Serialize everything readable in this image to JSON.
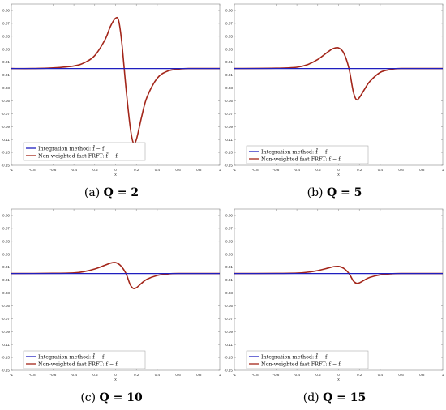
{
  "chart_data": [
    {
      "type": "line",
      "caption_tag": "(a)",
      "caption_text": "Q = 2",
      "xlabel": "x",
      "xlim": [
        -1,
        1
      ],
      "ylim": [
        -0.15,
        0.1
      ],
      "xticks": [
        "-1",
        "-0.8",
        "-0.6",
        "-0.4",
        "-0.2",
        "0",
        "0.2",
        "0.4",
        "0.6",
        "0.8",
        "1"
      ],
      "yticks": [
        "0.09",
        "0.07",
        "0.05",
        "0.03",
        "0.01",
        "-0.01",
        "-0.03",
        "-0.05",
        "-0.07",
        "-0.09",
        "-0.11",
        "-0.13",
        "-0.15"
      ],
      "legend_position": "center-left",
      "series": [
        {
          "name": "Integration method: f̃ − f",
          "color": "#1f1fbf",
          "x": [
            -1,
            -0.6,
            -0.2,
            0,
            0.2,
            0.6,
            1
          ],
          "y": [
            0,
            0,
            0,
            0,
            0,
            0,
            0
          ]
        },
        {
          "name": "Non-weighted fast FRFT: f̃ − f",
          "color": "#a3261a",
          "x": [
            -1,
            -0.8,
            -0.6,
            -0.4,
            -0.3,
            -0.2,
            -0.1,
            -0.05,
            0,
            0.03,
            0.06,
            0.1,
            0.14,
            0.17,
            0.2,
            0.25,
            0.3,
            0.4,
            0.5,
            0.6,
            0.7,
            1
          ],
          "y": [
            0,
            0,
            0.001,
            0.004,
            0.009,
            0.02,
            0.045,
            0.065,
            0.078,
            0.074,
            0.04,
            -0.03,
            -0.09,
            -0.115,
            -0.11,
            -0.075,
            -0.045,
            -0.015,
            -0.004,
            -0.001,
            0,
            0
          ]
        }
      ]
    },
    {
      "type": "line",
      "caption_tag": "(b)",
      "caption_text": "Q = 5",
      "xlabel": "x",
      "xlim": [
        -1,
        1
      ],
      "ylim": [
        -0.15,
        0.1
      ],
      "xticks": [
        "-1",
        "-0.8",
        "-0.6",
        "-0.4",
        "-0.2",
        "0",
        "0.2",
        "0.4",
        "0.6",
        "0.8",
        "1"
      ],
      "yticks": [
        "0.09",
        "0.07",
        "0.05",
        "0.03",
        "0.01",
        "-0.01",
        "-0.03",
        "-0.05",
        "-0.07",
        "-0.09",
        "-0.11",
        "-0.13",
        "-0.15"
      ],
      "legend_position": "bottom-left",
      "series": [
        {
          "name": "Integration method: f̃ − f",
          "color": "#1f1fbf",
          "x": [
            -1,
            -0.6,
            -0.2,
            0,
            0.2,
            0.6,
            1
          ],
          "y": [
            0,
            0,
            0,
            0,
            0,
            0,
            0
          ]
        },
        {
          "name": "Non-weighted fast FRFT: f̃ − f",
          "color": "#a3261a",
          "x": [
            -1,
            -0.6,
            -0.4,
            -0.3,
            -0.2,
            -0.1,
            -0.05,
            0,
            0.05,
            0.1,
            0.14,
            0.17,
            0.2,
            0.25,
            0.3,
            0.4,
            0.5,
            0.6,
            1
          ],
          "y": [
            0,
            0.0005,
            0.002,
            0.006,
            0.014,
            0.026,
            0.031,
            0.032,
            0.024,
            0.0,
            -0.035,
            -0.048,
            -0.045,
            -0.032,
            -0.02,
            -0.006,
            -0.0015,
            0,
            0
          ]
        }
      ]
    },
    {
      "type": "line",
      "caption_tag": "(c)",
      "caption_text": "Q = 10",
      "xlabel": "x",
      "xlim": [
        -1,
        1
      ],
      "ylim": [
        -0.15,
        0.1
      ],
      "xticks": [
        "-1",
        "-0.8",
        "-0.6",
        "-0.4",
        "-0.2",
        "0",
        "0.2",
        "0.4",
        "0.6",
        "0.8",
        "1"
      ],
      "yticks": [
        "0.09",
        "0.07",
        "0.05",
        "0.03",
        "0.01",
        "-0.01",
        "-0.03",
        "-0.05",
        "-0.07",
        "-0.09",
        "-0.11",
        "-0.13",
        "-0.15"
      ],
      "legend_position": "bottom-left",
      "series": [
        {
          "name": "Integration method: f̃ − f",
          "color": "#1f1fbf",
          "x": [
            -1,
            -0.6,
            -0.2,
            0,
            0.2,
            0.6,
            1
          ],
          "y": [
            0,
            0,
            0,
            0,
            0,
            0,
            0
          ]
        },
        {
          "name": "Non-weighted fast FRFT: f̃ − f",
          "color": "#a3261a",
          "x": [
            -1,
            -0.6,
            -0.4,
            -0.3,
            -0.2,
            -0.1,
            -0.05,
            0,
            0.05,
            0.1,
            0.14,
            0.17,
            0.2,
            0.25,
            0.3,
            0.4,
            0.5,
            0.6,
            1
          ],
          "y": [
            0,
            0.0003,
            0.001,
            0.003,
            0.007,
            0.013,
            0.016,
            0.017,
            0.012,
            0.0,
            -0.017,
            -0.023,
            -0.022,
            -0.015,
            -0.009,
            -0.003,
            -0.0007,
            0,
            0
          ]
        }
      ]
    },
    {
      "type": "line",
      "caption_tag": "(d)",
      "caption_text": "Q = 15",
      "xlabel": "x",
      "xlim": [
        -1,
        1
      ],
      "ylim": [
        -0.15,
        0.1
      ],
      "xticks": [
        "-1",
        "-0.8",
        "-0.6",
        "-0.4",
        "-0.2",
        "0",
        "0.2",
        "0.4",
        "0.6",
        "0.8",
        "1"
      ],
      "yticks": [
        "0.09",
        "0.07",
        "0.05",
        "0.03",
        "0.01",
        "-0.01",
        "-0.03",
        "-0.05",
        "-0.07",
        "-0.09",
        "-0.11",
        "-0.13",
        "-0.15"
      ],
      "legend_position": "bottom-left",
      "series": [
        {
          "name": "Integration method: f̃ − f",
          "color": "#1f1fbf",
          "x": [
            -1,
            -0.6,
            -0.2,
            0,
            0.2,
            0.6,
            1
          ],
          "y": [
            0,
            0,
            0,
            0,
            0,
            0,
            0
          ]
        },
        {
          "name": "Non-weighted fast FRFT: f̃ − f",
          "color": "#a3261a",
          "x": [
            -1,
            -0.6,
            -0.4,
            -0.3,
            -0.2,
            -0.1,
            -0.05,
            0,
            0.05,
            0.1,
            0.14,
            0.17,
            0.2,
            0.25,
            0.3,
            0.4,
            0.5,
            0.6,
            1
          ],
          "y": [
            0,
            0.0002,
            0.0007,
            0.002,
            0.0045,
            0.0085,
            0.0105,
            0.011,
            0.008,
            0.0,
            -0.011,
            -0.015,
            -0.0145,
            -0.01,
            -0.006,
            -0.002,
            -0.0005,
            0,
            0
          ]
        }
      ]
    }
  ]
}
